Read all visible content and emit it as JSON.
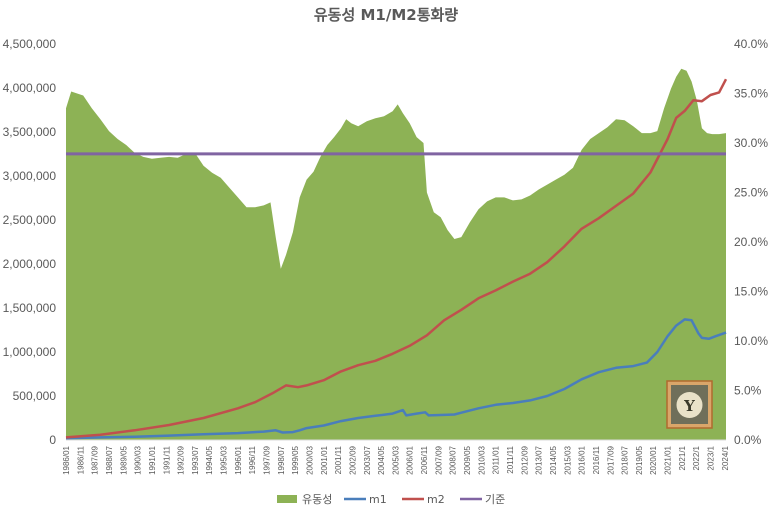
{
  "chart_data": {
    "type": "line",
    "title": "유동성 M1/M2통화량",
    "x_labels": [
      "1986/01",
      "1986/11",
      "1987/09",
      "1988/07",
      "1989/05",
      "1990/03",
      "1991/01",
      "1991/11",
      "1992/09",
      "1993/07",
      "1994/05",
      "1995/03",
      "1996/01",
      "1996/11",
      "1997/09",
      "1998/07",
      "1999/05",
      "2000/03",
      "2001/01",
      "2001/11",
      "2002/09",
      "2003/07",
      "2004/05",
      "2005/03",
      "2006/01",
      "2006/11",
      "2007/09",
      "2008/07",
      "2009/05",
      "2010/03",
      "2011/01",
      "2011/11",
      "2012/09",
      "2013/07",
      "2014/05",
      "2015/03",
      "2016/01",
      "2016/11",
      "2017/09",
      "2018/07",
      "2019/05",
      "2020/03",
      "2021/01",
      "2021/11",
      "2022/09",
      "2023/07",
      "2024/05"
    ],
    "x_label_display": [
      "1986/01",
      "1986/11",
      "1987/09",
      "1988/07",
      "1989/05",
      "1990/03",
      "1991/01",
      "1991/11",
      "1992/09",
      "1993/07",
      "1994/05",
      "1995/03",
      "1996/01",
      "1996/11",
      "1997/09",
      "1998/07",
      "1999/05",
      "2000/03",
      "2001/01",
      "2001/11",
      "2002/09",
      "2003/07",
      "2004/05",
      "2005/03",
      "2006/01",
      "2006/11",
      "2007/09",
      "2008/07",
      "2009/05",
      "2010/03",
      "2011/01",
      "2011/11",
      "2012/09",
      "2013/07",
      "2014/05",
      "2015/03",
      "2016/01",
      "2016/11",
      "2017/09",
      "2018/07",
      "2019/05",
      "2020/01",
      "2021/01",
      "2021/1",
      "2022/1",
      "2023/1",
      "2024/1"
    ],
    "y_left": {
      "min": 0,
      "max": 4500000,
      "ticks": [
        0,
        500000,
        1000000,
        1500000,
        2000000,
        2500000,
        3000000,
        3500000,
        4000000,
        4500000
      ],
      "tick_labels": [
        "0",
        "500,000",
        "1,000,000",
        "1,500,000",
        "2,000,000",
        "2,500,000",
        "3,000,000",
        "3,500,000",
        "4,000,000",
        "4,500,000"
      ]
    },
    "y_right": {
      "min": 0,
      "max": 40,
      "ticks": [
        0,
        5,
        10,
        15,
        20,
        25,
        30,
        35,
        40
      ],
      "tick_labels": [
        "0.0%",
        "5.0%",
        "10.0%",
        "15.0%",
        "20.0%",
        "25.0%",
        "30.0%",
        "35.0%",
        "40.0%"
      ]
    },
    "series": [
      {
        "name": "유동성",
        "kind": "area",
        "axis": "right",
        "color": "#8db255",
        "x": [
          1986.0,
          1986.3,
          1987.0,
          1987.5,
          1988.0,
          1988.5,
          1989.0,
          1989.5,
          1990.0,
          1990.5,
          1991.0,
          1991.5,
          1992.0,
          1992.5,
          1993.0,
          1993.5,
          1994.0,
          1994.5,
          1995.0,
          1995.5,
          1996.0,
          1996.5,
          1997.0,
          1997.5,
          1997.9,
          1998.2,
          1998.5,
          1998.8,
          1999.2,
          1999.6,
          2000.0,
          2000.4,
          2000.8,
          2001.2,
          2001.6,
          2002.0,
          2002.3,
          2002.6,
          2003.0,
          2003.5,
          2004.0,
          2004.5,
          2005.0,
          2005.3,
          2005.6,
          2006.0,
          2006.4,
          2006.8,
          2007.0,
          2007.4,
          2007.8,
          2008.2,
          2008.6,
          2009.0,
          2009.5,
          2010.0,
          2010.5,
          2011.0,
          2011.5,
          2012.0,
          2012.5,
          2013.0,
          2013.5,
          2014.0,
          2014.5,
          2015.0,
          2015.5,
          2016.0,
          2016.5,
          2017.0,
          2017.5,
          2018.0,
          2018.5,
          2019.0,
          2019.5,
          2020.0,
          2020.4,
          2020.8,
          2021.2,
          2021.5,
          2021.8,
          2022.1,
          2022.4,
          2022.7,
          2023.0,
          2023.3,
          2023.6,
          2024.0,
          2024.4
        ],
        "values": [
          33.5,
          35.2,
          34.8,
          33.5,
          32.4,
          31.2,
          30.4,
          29.8,
          29.0,
          28.6,
          28.4,
          28.5,
          28.6,
          28.5,
          28.9,
          29.0,
          27.7,
          27.0,
          26.5,
          25.5,
          24.5,
          23.5,
          23.5,
          23.7,
          24.0,
          20.5,
          17.3,
          18.7,
          21.0,
          24.5,
          26.3,
          27.1,
          28.6,
          29.8,
          30.6,
          31.5,
          32.4,
          32.0,
          31.7,
          32.2,
          32.5,
          32.7,
          33.2,
          33.9,
          33.0,
          32.0,
          30.6,
          30.0,
          25.0,
          23.0,
          22.5,
          21.2,
          20.3,
          20.5,
          22.0,
          23.3,
          24.1,
          24.5,
          24.5,
          24.2,
          24.3,
          24.7,
          25.3,
          25.8,
          26.3,
          26.8,
          27.5,
          29.3,
          30.4,
          31.0,
          31.6,
          32.4,
          32.3,
          31.7,
          31.0,
          31.0,
          31.2,
          33.5,
          35.5,
          36.7,
          37.5,
          37.3,
          36.2,
          34.3,
          31.5,
          31.0,
          30.9,
          30.9,
          31.0
        ]
      },
      {
        "name": "m1",
        "kind": "line",
        "axis": "left",
        "color": "#4a7ebb",
        "x": [
          1986.0,
          1988.0,
          1990.0,
          1992.0,
          1994.0,
          1996.0,
          1997.5,
          1998.2,
          1998.6,
          1999.2,
          1999.6,
          2000.0,
          2001.0,
          2002.0,
          2003.0,
          2004.0,
          2005.0,
          2005.6,
          2005.8,
          2006.4,
          2006.9,
          2007.1,
          2008.0,
          2008.6,
          2009.0,
          2010.0,
          2011.0,
          2012.0,
          2013.0,
          2014.0,
          2015.0,
          2016.0,
          2017.0,
          2018.0,
          2019.0,
          2019.8,
          2020.4,
          2021.0,
          2021.5,
          2022.0,
          2022.4,
          2022.8,
          2023.0,
          2023.4,
          2023.8,
          2024.4
        ],
        "values": [
          20000,
          30000,
          38000,
          50000,
          65000,
          78000,
          95000,
          110000,
          85000,
          90000,
          110000,
          135000,
          165000,
          215000,
          250000,
          275000,
          300000,
          340000,
          280000,
          300000,
          315000,
          280000,
          285000,
          290000,
          310000,
          360000,
          400000,
          420000,
          450000,
          500000,
          580000,
          690000,
          770000,
          820000,
          840000,
          880000,
          1000000,
          1180000,
          1300000,
          1370000,
          1360000,
          1210000,
          1160000,
          1150000,
          1180000,
          1220000
        ]
      },
      {
        "name": "m2",
        "kind": "line",
        "axis": "left",
        "color": "#c0504d",
        "x": [
          1986.0,
          1988.0,
          1990.0,
          1992.0,
          1994.0,
          1996.0,
          1997.0,
          1998.0,
          1998.8,
          1999.5,
          2000.0,
          2001.0,
          2002.0,
          2003.0,
          2004.0,
          2005.0,
          2006.0,
          2007.0,
          2008.0,
          2009.0,
          2010.0,
          2011.0,
          2012.0,
          2013.0,
          2014.0,
          2015.0,
          2016.0,
          2017.0,
          2018.0,
          2019.0,
          2020.0,
          2021.0,
          2021.5,
          2022.0,
          2022.5,
          2023.0,
          2023.5,
          2024.0,
          2024.4
        ],
        "values": [
          30000,
          60000,
          110000,
          170000,
          250000,
          360000,
          430000,
          530000,
          620000,
          600000,
          620000,
          680000,
          780000,
          850000,
          900000,
          980000,
          1070000,
          1190000,
          1360000,
          1480000,
          1610000,
          1700000,
          1800000,
          1890000,
          2020000,
          2200000,
          2400000,
          2520000,
          2660000,
          2800000,
          3040000,
          3420000,
          3660000,
          3740000,
          3860000,
          3850000,
          3920000,
          3950000,
          4100000
        ]
      },
      {
        "name": "기준",
        "kind": "line",
        "axis": "right",
        "color": "#8064a2",
        "x": [
          1986.0,
          2024.4
        ],
        "values": [
          28.9,
          28.9
        ]
      }
    ],
    "legend": {
      "position": "bottom",
      "entries": [
        "유동성",
        "m1",
        "m2",
        "기준"
      ]
    },
    "grid": false
  },
  "watermark_icon": "yuz-badge-icon",
  "watermark_letter": "Y"
}
